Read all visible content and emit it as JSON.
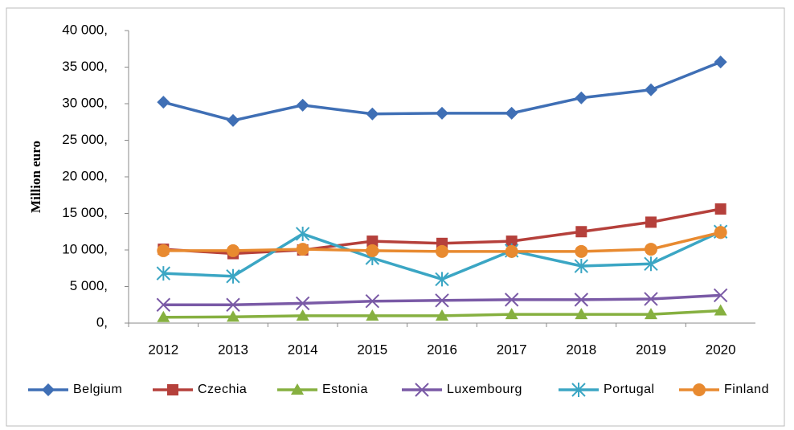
{
  "chart_data": {
    "type": "line",
    "ylabel": "Million euro",
    "categories": [
      "2012",
      "2013",
      "2014",
      "2015",
      "2016",
      "2017",
      "2018",
      "2019",
      "2020"
    ],
    "series": [
      {
        "name": "Belgium",
        "color": "#3f6fb5",
        "marker": "diamond",
        "values": [
          30200,
          27700,
          29800,
          28600,
          28700,
          28700,
          30800,
          31900,
          35700
        ]
      },
      {
        "name": "Czechia",
        "color": "#b5403b",
        "marker": "square",
        "values": [
          10100,
          9500,
          10000,
          11200,
          10900,
          11200,
          12500,
          13800,
          15600
        ]
      },
      {
        "name": "Estonia",
        "color": "#86b040",
        "marker": "triangle",
        "values": [
          800,
          850,
          1000,
          1000,
          1000,
          1200,
          1200,
          1200,
          1700
        ]
      },
      {
        "name": "Luxembourg",
        "color": "#7a5aa6",
        "marker": "x",
        "values": [
          2500,
          2500,
          2700,
          3000,
          3100,
          3200,
          3200,
          3300,
          3800
        ]
      },
      {
        "name": "Portugal",
        "color": "#3ba6c4",
        "marker": "star",
        "values": [
          6800,
          6400,
          12200,
          8900,
          6000,
          9900,
          7800,
          8100,
          12500
        ]
      },
      {
        "name": "Finland",
        "color": "#e88a30",
        "marker": "circle",
        "values": [
          9900,
          9900,
          10100,
          9900,
          9800,
          9800,
          9800,
          10100,
          12400
        ]
      }
    ],
    "ylim": [
      0,
      40000
    ],
    "yticks": [
      {
        "value": 0,
        "label": "0,"
      },
      {
        "value": 5000,
        "label": "5 000,"
      },
      {
        "value": 10000,
        "label": "10 000,"
      },
      {
        "value": 15000,
        "label": "15 000,"
      },
      {
        "value": 20000,
        "label": "20 000,"
      },
      {
        "value": 25000,
        "label": "25 000,"
      },
      {
        "value": 30000,
        "label": "30 000,"
      },
      {
        "value": 35000,
        "label": "35 000,"
      },
      {
        "value": 40000,
        "label": "40 000,"
      }
    ],
    "grid": false,
    "legend": "bottom"
  }
}
